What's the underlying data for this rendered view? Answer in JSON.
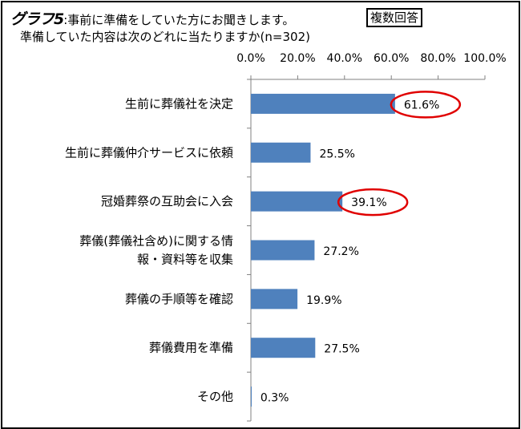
{
  "header": {
    "title_main": "グラフ5",
    "title_rest": ":事前に準備をしていた方にお聞きします。",
    "badge": "複数回答",
    "subtitle": "準備していた内容は次のどれに当たりますか(n=302)"
  },
  "chart_data": {
    "type": "bar",
    "orientation": "horizontal",
    "title": "グラフ5:事前に準備をしていた方にお聞きします。",
    "subtitle": "準備していた内容は次のどれに当たりますか(n=302)",
    "categories": [
      [
        "生前に葬儀社を決定"
      ],
      [
        "生前に葬儀仲介サービスに依頼"
      ],
      [
        "冠婚葬祭の互助会に入会"
      ],
      [
        "葬儀(葬儀社含め)に関する情",
        "報・資料等を収集"
      ],
      [
        "葬儀の手順等を確認"
      ],
      [
        "葬儀費用を準備"
      ],
      [
        "その他"
      ]
    ],
    "values": [
      61.6,
      25.5,
      39.1,
      27.2,
      19.9,
      27.5,
      0.3
    ],
    "value_labels": [
      "61.6%",
      "25.5%",
      "39.1%",
      "27.2%",
      "19.9%",
      "27.5%",
      "0.3%"
    ],
    "xlim": [
      0,
      100
    ],
    "ticks": [
      "0.0%",
      "20.0%",
      "40.0%",
      "60.0%",
      "80.0%",
      "100.0%"
    ],
    "axis_position": "top",
    "grid": false,
    "bar_color": "#4F81BD",
    "highlight_color": "#E00000",
    "highlighted_indices": [
      0,
      2
    ]
  }
}
